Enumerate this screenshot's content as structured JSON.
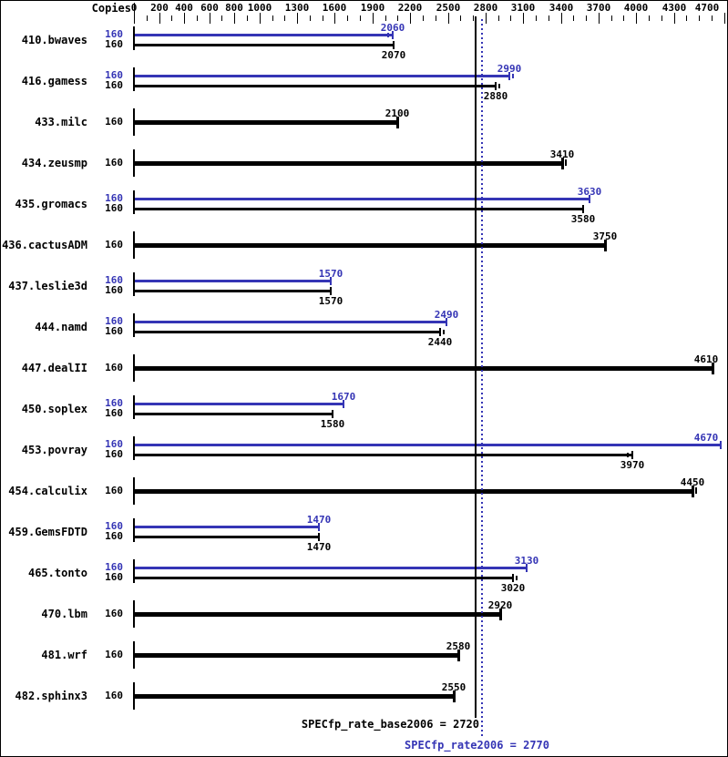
{
  "chart_data": {
    "type": "bar",
    "orientation": "horizontal",
    "copies_header": "Copies",
    "axis": {
      "min": 0,
      "max": 4700,
      "labeled_ticks": [
        0,
        200,
        400,
        600,
        800,
        1000,
        1300,
        1600,
        1900,
        2200,
        2500,
        2800,
        3100,
        3400,
        3700,
        4000,
        4300,
        4700
      ],
      "minor_tick_step": 100
    },
    "colors": {
      "peak": "#3535b5",
      "base": "#000000"
    },
    "benchmarks": [
      {
        "name": "410.bwaves",
        "results": [
          {
            "series": "peak",
            "copies": 160,
            "value": 2060,
            "run_mark": "before"
          },
          {
            "series": "base",
            "copies": 160,
            "value": 2070,
            "run_mark": null
          }
        ]
      },
      {
        "name": "416.gamess",
        "results": [
          {
            "series": "peak",
            "copies": 160,
            "value": 2990,
            "run_mark": "after"
          },
          {
            "series": "base",
            "copies": 160,
            "value": 2880,
            "run_mark": "after"
          }
        ]
      },
      {
        "name": "433.milc",
        "results": [
          {
            "series": "base",
            "copies": 160,
            "value": 2100,
            "run_mark": null
          }
        ]
      },
      {
        "name": "434.zeusmp",
        "results": [
          {
            "series": "base",
            "copies": 160,
            "value": 3410,
            "run_mark": "after"
          }
        ]
      },
      {
        "name": "435.gromacs",
        "results": [
          {
            "series": "peak",
            "copies": 160,
            "value": 3630,
            "run_mark": null
          },
          {
            "series": "base",
            "copies": 160,
            "value": 3580,
            "run_mark": null
          }
        ]
      },
      {
        "name": "436.cactusADM",
        "results": [
          {
            "series": "base",
            "copies": 160,
            "value": 3750,
            "run_mark": null
          }
        ]
      },
      {
        "name": "437.leslie3d",
        "results": [
          {
            "series": "peak",
            "copies": 160,
            "value": 1570,
            "run_mark": null
          },
          {
            "series": "base",
            "copies": 160,
            "value": 1570,
            "run_mark": null
          }
        ]
      },
      {
        "name": "444.namd",
        "results": [
          {
            "series": "peak",
            "copies": 160,
            "value": 2490,
            "run_mark": null
          },
          {
            "series": "base",
            "copies": 160,
            "value": 2440,
            "run_mark": "after"
          }
        ]
      },
      {
        "name": "447.dealII",
        "results": [
          {
            "series": "base",
            "copies": 160,
            "value": 4610,
            "run_mark": null
          }
        ]
      },
      {
        "name": "450.soplex",
        "results": [
          {
            "series": "peak",
            "copies": 160,
            "value": 1670,
            "run_mark": null
          },
          {
            "series": "base",
            "copies": 160,
            "value": 1580,
            "run_mark": null
          }
        ]
      },
      {
        "name": "453.povray",
        "results": [
          {
            "series": "peak",
            "copies": 160,
            "value": 4670,
            "run_mark": null
          },
          {
            "series": "base",
            "copies": 160,
            "value": 3970,
            "run_mark": "before"
          }
        ]
      },
      {
        "name": "454.calculix",
        "results": [
          {
            "series": "base",
            "copies": 160,
            "value": 4450,
            "run_mark": "after"
          }
        ]
      },
      {
        "name": "459.GemsFDTD",
        "results": [
          {
            "series": "peak",
            "copies": 160,
            "value": 1470,
            "run_mark": null
          },
          {
            "series": "base",
            "copies": 160,
            "value": 1470,
            "run_mark": null
          }
        ]
      },
      {
        "name": "465.tonto",
        "results": [
          {
            "series": "peak",
            "copies": 160,
            "value": 3130,
            "run_mark": null
          },
          {
            "series": "base",
            "copies": 160,
            "value": 3020,
            "run_mark": "after"
          }
        ]
      },
      {
        "name": "470.lbm",
        "results": [
          {
            "series": "base",
            "copies": 160,
            "value": 2920,
            "run_mark": null
          }
        ]
      },
      {
        "name": "481.wrf",
        "results": [
          {
            "series": "base",
            "copies": 160,
            "value": 2580,
            "run_mark": null
          }
        ]
      },
      {
        "name": "482.sphinx3",
        "results": [
          {
            "series": "base",
            "copies": 160,
            "value": 2550,
            "run_mark": null
          }
        ]
      }
    ],
    "reference_lines": [
      {
        "series": "base",
        "value": 2720,
        "style": "solid",
        "color": "#000000"
      },
      {
        "series": "peak",
        "value": 2770,
        "style": "dotted",
        "color": "#3535b5"
      }
    ],
    "summary": {
      "base_text": "SPECfp_rate_base2006 = 2720",
      "peak_text": "SPECfp_rate2006 = 2770"
    }
  }
}
